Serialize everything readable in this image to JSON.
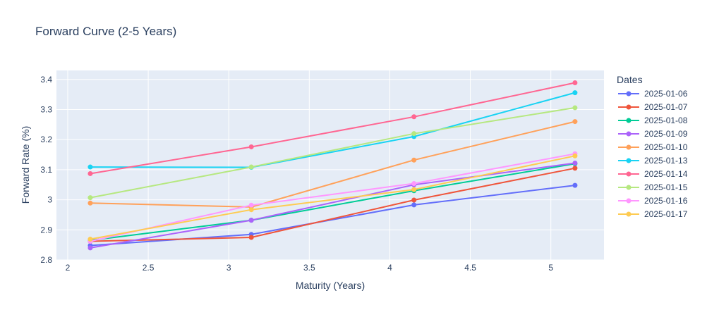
{
  "chart_data": {
    "type": "line",
    "title": "Forward Curve (2-5 Years)",
    "xlabel": "Maturity (Years)",
    "ylabel": "Forward Rate (%)",
    "xlim": [
      1.93,
      5.33
    ],
    "ylim": [
      2.8,
      3.43
    ],
    "xticks": [
      2,
      2.5,
      3,
      3.5,
      4,
      4.5,
      5
    ],
    "xtick_labels": [
      "2",
      "2.5",
      "3",
      "3.5",
      "4",
      "4.5",
      "5"
    ],
    "yticks": [
      2.8,
      2.9,
      3.0,
      3.1,
      3.2,
      3.3,
      3.4
    ],
    "ytick_labels": [
      "2.8",
      "2.9",
      "3",
      "3.1",
      "3.2",
      "3.3",
      "3.4"
    ],
    "grid": true,
    "legend_title": "Dates",
    "legend_position": "right",
    "x": [
      2.14,
      3.14,
      4.15,
      5.15
    ],
    "series": [
      {
        "name": "2025-01-06",
        "color": "#636efa",
        "values": [
          2.848,
          2.885,
          2.983,
          3.048
        ]
      },
      {
        "name": "2025-01-07",
        "color": "#ef553b",
        "values": [
          2.862,
          2.875,
          2.999,
          3.105
        ]
      },
      {
        "name": "2025-01-08",
        "color": "#00cc96",
        "values": [
          2.865,
          2.932,
          3.03,
          3.12
        ]
      },
      {
        "name": "2025-01-09",
        "color": "#ab63fa",
        "values": [
          2.84,
          2.932,
          3.05,
          3.122
        ]
      },
      {
        "name": "2025-01-10",
        "color": "#ffa15a",
        "values": [
          2.989,
          2.976,
          3.132,
          3.26
        ]
      },
      {
        "name": "2025-01-13",
        "color": "#19d3f3",
        "values": [
          3.109,
          3.108,
          3.21,
          3.356
        ]
      },
      {
        "name": "2025-01-14",
        "color": "#ff6692",
        "values": [
          3.087,
          3.176,
          3.276,
          3.389
        ]
      },
      {
        "name": "2025-01-15",
        "color": "#b6e880",
        "values": [
          3.007,
          3.109,
          3.22,
          3.306
        ]
      },
      {
        "name": "2025-01-16",
        "color": "#ff97ff",
        "values": [
          2.862,
          2.982,
          3.054,
          3.153
        ]
      },
      {
        "name": "2025-01-17",
        "color": "#fecb52",
        "values": [
          2.869,
          2.967,
          3.034,
          3.146
        ]
      }
    ]
  }
}
